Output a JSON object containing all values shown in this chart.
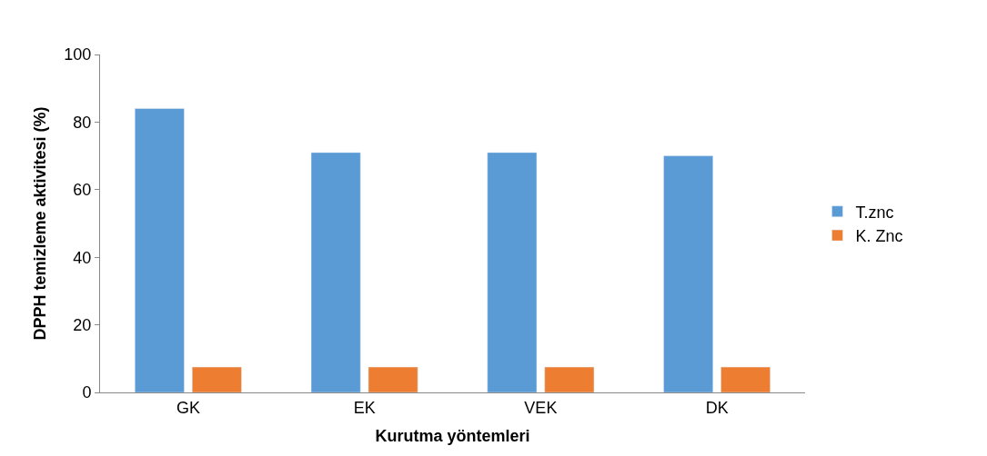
{
  "chart_data": {
    "type": "bar",
    "xlabel": "Kurutma yöntemleri",
    "ylabel": "DPPH temizleme aktivitesi (%)",
    "categories": [
      "GK",
      "EK",
      "VEK",
      "DK"
    ],
    "series": [
      {
        "name": "T.znc",
        "color": "#5b9bd5",
        "values": [
          84,
          71,
          71,
          70
        ]
      },
      {
        "name": "K. Znc",
        "color": "#ed7d31",
        "values": [
          7.5,
          7.5,
          7.5,
          7.5
        ]
      }
    ],
    "ylim": [
      0,
      100
    ],
    "yticks": [
      0,
      20,
      40,
      60,
      80,
      100
    ],
    "grid": false,
    "legend": "right"
  }
}
